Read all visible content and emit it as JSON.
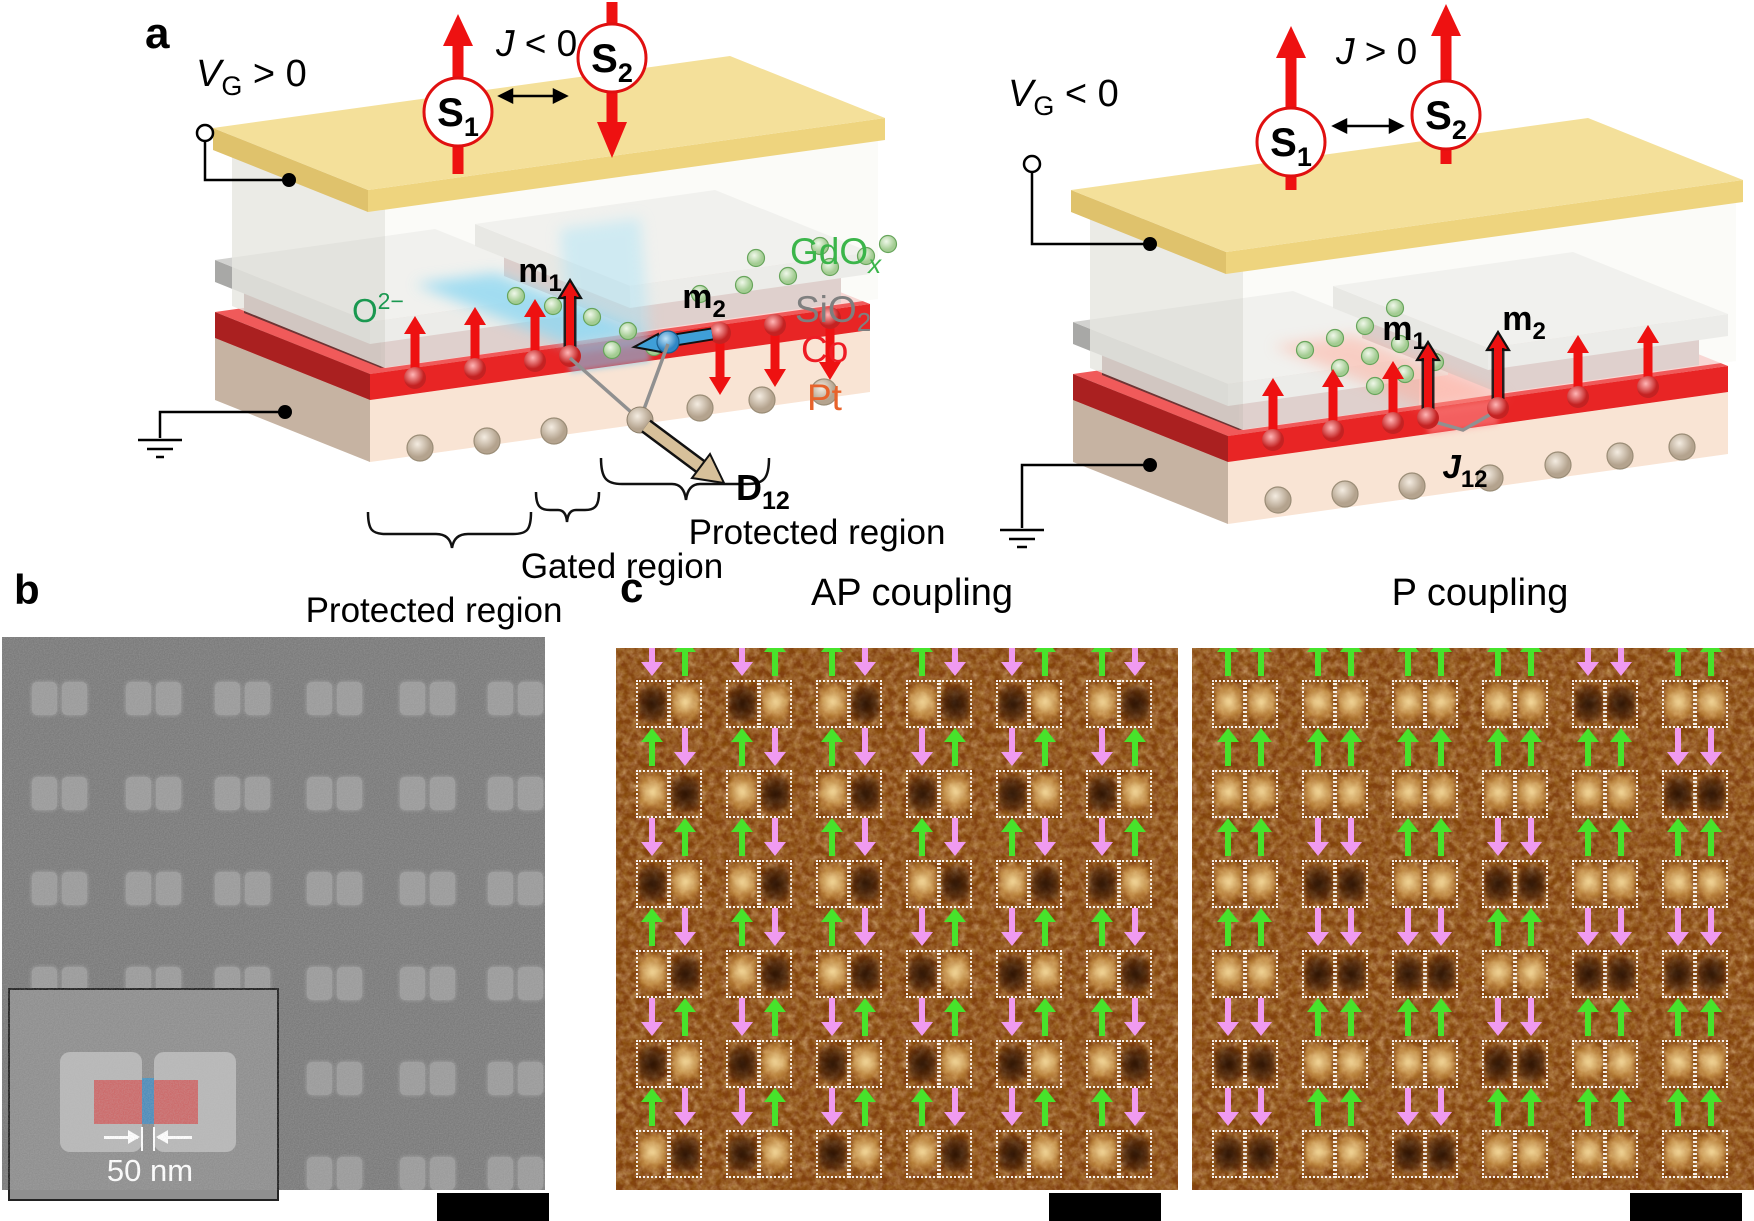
{
  "figure": {
    "panel_a": "a",
    "panel_b": "b",
    "panel_c": "c"
  },
  "device_left": {
    "gate": {
      "sym": "V",
      "sub": "G",
      "cond": " > 0"
    },
    "exchange": {
      "sym": "J",
      "cond": " < 0"
    },
    "s1": {
      "sym": "S",
      "sub": "1"
    },
    "s2": {
      "sym": "S",
      "sub": "2"
    },
    "m1": {
      "sym": "m",
      "sub": "1"
    },
    "m2": {
      "sym": "m",
      "sub": "2"
    },
    "d12": {
      "sym": "D",
      "sub": "12"
    },
    "oxygen": {
      "sym": "O",
      "sup": "2−"
    },
    "region_left": "Protected region",
    "region_middle": "Gated region",
    "region_right": "Protected region"
  },
  "device_right": {
    "gate": {
      "sym": "V",
      "sub": "G",
      "cond": " < 0"
    },
    "exchange": {
      "sym": "J",
      "cond": " > 0"
    },
    "s1": {
      "sym": "S",
      "sub": "1"
    },
    "s2": {
      "sym": "S",
      "sub": "2"
    },
    "m1": {
      "sym": "m",
      "sub": "1"
    },
    "m2": {
      "sym": "m",
      "sub": "2"
    },
    "j12": {
      "sym": "J",
      "sub": "12"
    }
  },
  "legend": {
    "items": [
      {
        "label": "GdO",
        "sub": "x",
        "color": "#3bb54a"
      },
      {
        "label": "SiO",
        "sub": "2",
        "color": "#7f7f7f"
      },
      {
        "label": "Co",
        "sub": "",
        "color": "#ee1c24"
      },
      {
        "label": "Pt",
        "sub": "",
        "color": "#e8632b"
      }
    ]
  },
  "panel_b": {
    "inset_scale_label": "50 nm"
  },
  "panel_c": {
    "ap_title": "AP coupling",
    "p_title": "P coupling",
    "up_color": "#47e32b",
    "down_color": "#f09af0",
    "ap_grid": [
      [
        "du",
        "du",
        "ud",
        "ud",
        "du",
        "ud"
      ],
      [
        "ud",
        "ud",
        "ud",
        "du",
        "du",
        "du"
      ],
      [
        "du",
        "ud",
        "ud",
        "ud",
        "ud",
        "du"
      ],
      [
        "ud",
        "ud",
        "ud",
        "du",
        "du",
        "ud"
      ],
      [
        "du",
        "du",
        "du",
        "du",
        "du",
        "ud"
      ],
      [
        "ud",
        "du",
        "du",
        "ud",
        "du",
        "ud"
      ]
    ],
    "p_grid": [
      [
        "uu",
        "uu",
        "uu",
        "uu",
        "dd",
        "uu"
      ],
      [
        "uu",
        "uu",
        "uu",
        "uu",
        "uu",
        "dd"
      ],
      [
        "uu",
        "dd",
        "uu",
        "dd",
        "uu",
        "uu"
      ],
      [
        "uu",
        "dd",
        "dd",
        "uu",
        "dd",
        "dd"
      ],
      [
        "dd",
        "uu",
        "uu",
        "dd",
        "uu",
        "uu"
      ],
      [
        "dd",
        "uu",
        "dd",
        "uu",
        "uu",
        "uu"
      ]
    ]
  }
}
